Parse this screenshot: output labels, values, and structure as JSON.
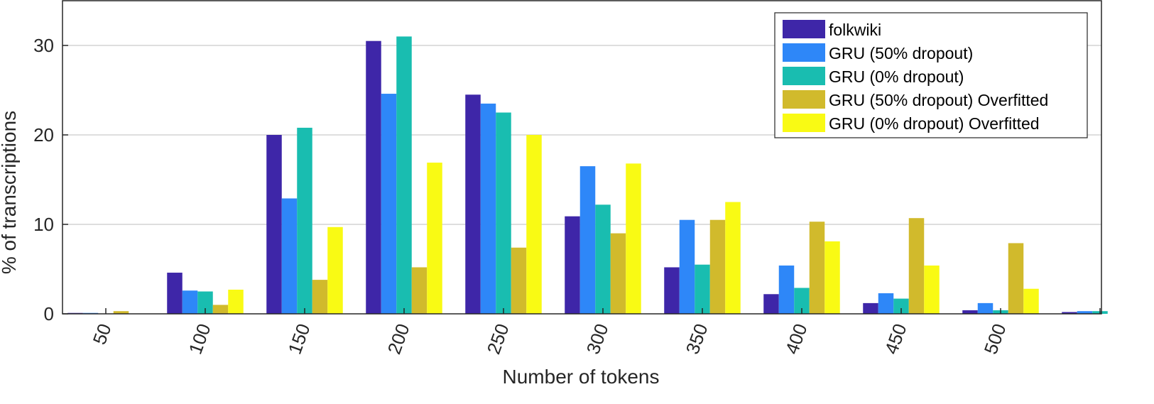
{
  "chart_data": {
    "type": "bar",
    "xlabel": "Number of tokens",
    "ylabel": "% of transcriptions",
    "ylim": [
      0,
      35
    ],
    "yticks": [
      0,
      10,
      20,
      30
    ],
    "grid": "horizontal",
    "legend_position": "top-right",
    "categories": [
      "50",
      "100",
      "150",
      "200",
      "250",
      "300",
      "350",
      "400",
      "450",
      "500",
      ""
    ],
    "series": [
      {
        "name": "folkwiki",
        "color": "#3E26A8",
        "values": [
          0.1,
          4.6,
          20.0,
          30.5,
          24.5,
          10.9,
          5.2,
          2.2,
          1.2,
          0.4,
          0.2
        ]
      },
      {
        "name": "GRU (50% dropout)",
        "color": "#2E87F8",
        "values": [
          0.1,
          2.6,
          12.9,
          24.6,
          23.5,
          16.5,
          10.5,
          5.4,
          2.3,
          1.2,
          0.3
        ]
      },
      {
        "name": "GRU (0% dropout)",
        "color": "#19BDB0",
        "values": [
          0.0,
          2.5,
          20.8,
          31.0,
          22.5,
          12.2,
          5.5,
          2.9,
          1.7,
          0.4,
          0.3
        ]
      },
      {
        "name": "GRU (50% dropout) Overfitted",
        "color": "#D1BA2C",
        "values": [
          0.3,
          1.0,
          3.8,
          5.2,
          7.4,
          9.0,
          10.5,
          10.3,
          10.7,
          7.9,
          0.0
        ]
      },
      {
        "name": "GRU (0% dropout) Overfitted",
        "color": "#F9FA14",
        "values": [
          0.0,
          2.7,
          9.7,
          16.9,
          20.0,
          16.8,
          12.5,
          8.1,
          5.4,
          2.8,
          0.0
        ]
      }
    ]
  }
}
